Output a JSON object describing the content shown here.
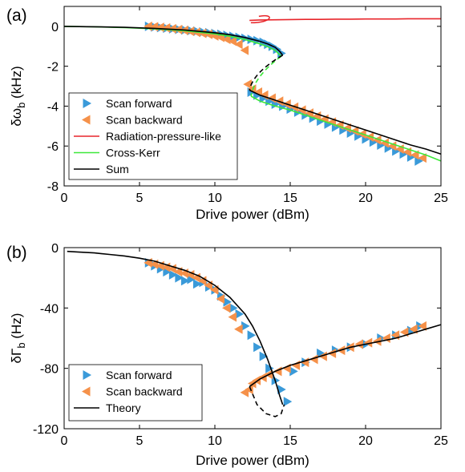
{
  "colors": {
    "forward": "#3a9ad9",
    "backward": "#f5914a",
    "radiation": "#e8262b",
    "crosskerr": "#3de83a",
    "sum": "#000000",
    "theory": "#000000"
  },
  "chart_data": [
    {
      "type": "scatter",
      "panel_label": "(a)",
      "xlabel": "Drive power (dBm)",
      "ylabel_main": "δω",
      "ylabel_sub": "b",
      "ylabel_unit": " (kHz)",
      "xlim": [
        0,
        25
      ],
      "ylim": [
        -8,
        1
      ],
      "xticks": [
        "0",
        "5",
        "10",
        "15",
        "20",
        "25"
      ],
      "yticks": [
        "0",
        "-2",
        "-4",
        "-6",
        "-8"
      ],
      "grid": false,
      "legend_position": "bottom-left",
      "series": [
        {
          "name": "Scan forward",
          "kind": "marker-right",
          "color": "#3a9ad9",
          "x": [
            5.6,
            6.0,
            6.4,
            6.8,
            7.2,
            7.6,
            8.0,
            8.4,
            8.8,
            9.2,
            9.6,
            10.0,
            10.4,
            10.8,
            11.2,
            11.6,
            12.0,
            12.4,
            12.8,
            13.2,
            13.5,
            13.8,
            14.1,
            14.4,
            12.4,
            12.8,
            13.2,
            13.6,
            14.0,
            14.5,
            15.0,
            15.5,
            16.0,
            16.5,
            17.0,
            17.5,
            18.0,
            18.5,
            19.0,
            19.5,
            20.0,
            20.5,
            21.0,
            21.5,
            22.0,
            22.5,
            23.0,
            23.5
          ],
          "y": [
            0.0,
            -0.03,
            -0.06,
            -0.09,
            -0.12,
            -0.15,
            -0.18,
            -0.21,
            -0.24,
            -0.28,
            -0.32,
            -0.36,
            -0.4,
            -0.45,
            -0.5,
            -0.55,
            -0.6,
            -0.65,
            -0.72,
            -0.8,
            -0.9,
            -1.0,
            -1.15,
            -1.35,
            -3.3,
            -3.45,
            -3.6,
            -3.75,
            -3.9,
            -4.0,
            -4.15,
            -4.3,
            -4.45,
            -4.6,
            -4.75,
            -4.9,
            -5.05,
            -5.2,
            -5.35,
            -5.5,
            -5.65,
            -5.8,
            -5.95,
            -6.1,
            -6.25,
            -6.4,
            -6.55,
            -6.75
          ]
        },
        {
          "name": "Scan backward",
          "kind": "marker-left",
          "color": "#f5914a",
          "x": [
            23.8,
            23.3,
            22.8,
            22.3,
            21.8,
            21.3,
            20.8,
            20.3,
            19.8,
            19.3,
            18.8,
            18.3,
            17.8,
            17.3,
            16.8,
            16.3,
            15.8,
            15.3,
            14.8,
            14.3,
            13.8,
            13.3,
            12.9,
            12.5,
            12.2,
            12.0,
            11.6,
            11.2,
            10.8,
            10.4,
            10.0,
            9.6,
            9.2,
            8.8,
            8.4,
            8.0,
            7.6,
            7.2,
            6.8,
            6.4,
            6.0,
            5.6
          ],
          "y": [
            -6.6,
            -6.45,
            -6.3,
            -6.15,
            -6.0,
            -5.85,
            -5.7,
            -5.55,
            -5.4,
            -5.25,
            -5.1,
            -4.95,
            -4.8,
            -4.65,
            -4.5,
            -4.35,
            -4.2,
            -4.05,
            -3.9,
            -3.75,
            -3.6,
            -3.45,
            -3.3,
            -3.15,
            -2.9,
            -1.2,
            -0.9,
            -0.75,
            -0.65,
            -0.55,
            -0.48,
            -0.4,
            -0.35,
            -0.3,
            -0.25,
            -0.2,
            -0.16,
            -0.12,
            -0.08,
            -0.05,
            -0.02,
            0.0
          ]
        },
        {
          "name": "Radiation-pressure-like",
          "kind": "line",
          "color": "#e8262b",
          "x": [
            12.3,
            13.0,
            14.0,
            15.0,
            16.0,
            17.0,
            18.0,
            19.0,
            20.0,
            21.0,
            22.0,
            23.0,
            24.0,
            25.0
          ],
          "y": [
            0.3,
            0.32,
            0.33,
            0.34,
            0.35,
            0.35,
            0.36,
            0.36,
            0.37,
            0.37,
            0.37,
            0.38,
            0.38,
            0.38
          ]
        },
        {
          "name": "Cross-Kerr",
          "kind": "line",
          "color": "#3de83a",
          "x": [
            0,
            2,
            4,
            6,
            8,
            10,
            11,
            12,
            13,
            13.5,
            14.0,
            14.4,
            12.4,
            13,
            14,
            15,
            16,
            17,
            18,
            19,
            20,
            21,
            22,
            23,
            24,
            25
          ],
          "y": [
            0.0,
            -0.02,
            -0.06,
            -0.12,
            -0.22,
            -0.38,
            -0.5,
            -0.66,
            -0.88,
            -1.02,
            -1.2,
            -1.5,
            -3.5,
            -3.75,
            -4.0,
            -4.2,
            -4.45,
            -4.7,
            -4.95,
            -5.2,
            -5.45,
            -5.7,
            -5.95,
            -6.2,
            -6.45,
            -6.75
          ]
        },
        {
          "name": "Sum",
          "kind": "line",
          "color": "#000000",
          "x": [
            0,
            2,
            4,
            6,
            8,
            10,
            11,
            12,
            13,
            13.5,
            14.0,
            14.3,
            14.5,
            12.3,
            13,
            14,
            15,
            16,
            17,
            18,
            19,
            20,
            21,
            22,
            23,
            24,
            25
          ],
          "y": [
            0.0,
            -0.02,
            -0.05,
            -0.1,
            -0.18,
            -0.32,
            -0.42,
            -0.56,
            -0.75,
            -0.88,
            -1.05,
            -1.25,
            -1.45,
            -3.2,
            -3.45,
            -3.7,
            -3.95,
            -4.2,
            -4.45,
            -4.7,
            -4.95,
            -5.2,
            -5.45,
            -5.7,
            -5.95,
            -6.15,
            -6.4
          ]
        }
      ]
    },
    {
      "type": "scatter",
      "panel_label": "(b)",
      "xlabel": "Drive power (dBm)",
      "ylabel_main": "δΓ",
      "ylabel_sub": "b",
      "ylabel_unit": " (Hz)",
      "xlim": [
        0,
        25
      ],
      "ylim": [
        -120,
        0
      ],
      "xticks": [
        "0",
        "5",
        "10",
        "15",
        "20",
        "25"
      ],
      "yticks": [
        "0",
        "-40",
        "-80",
        "-120"
      ],
      "grid": false,
      "legend_position": "bottom-left",
      "series": [
        {
          "name": "Scan forward",
          "kind": "marker-right",
          "color": "#3a9ad9",
          "x": [
            5.6,
            6.0,
            6.4,
            6.8,
            7.2,
            7.6,
            8.0,
            8.4,
            8.8,
            9.2,
            9.6,
            10.0,
            10.4,
            10.8,
            11.2,
            11.6,
            12.0,
            12.4,
            12.8,
            13.2,
            13.6,
            14.0,
            14.4,
            14.8,
            15.2,
            16.0,
            17.0,
            18.0,
            19.0,
            20.0,
            21.0,
            22.0,
            23.0,
            23.6
          ],
          "y": [
            -10,
            -12,
            -14,
            -16,
            -18,
            -20,
            -22,
            -21,
            -24,
            -23,
            -26,
            -28,
            -32,
            -36,
            -40,
            -44,
            -52,
            -58,
            -66,
            -72,
            -80,
            -88,
            -94,
            -102,
            -82,
            -76,
            -70,
            -68,
            -66,
            -64,
            -60,
            -58,
            -55,
            -52
          ]
        },
        {
          "name": "Scan backward",
          "kind": "marker-left",
          "color": "#f5914a",
          "x": [
            23.8,
            23.2,
            22.6,
            22.0,
            21.4,
            20.8,
            20.2,
            19.6,
            19.0,
            18.4,
            17.8,
            17.2,
            16.6,
            16.0,
            15.4,
            14.8,
            14.2,
            13.6,
            13.2,
            12.8,
            12.5,
            12.3,
            12.0,
            11.6,
            11.2,
            10.8,
            10.4,
            10.0,
            9.6,
            9.2,
            8.8,
            8.4,
            8.0,
            7.6,
            7.2,
            6.8,
            6.4,
            6.0,
            5.6
          ],
          "y": [
            -52,
            -54,
            -56,
            -58,
            -60,
            -62,
            -63,
            -64,
            -66,
            -68,
            -70,
            -72,
            -74,
            -76,
            -78,
            -80,
            -82,
            -84,
            -86,
            -88,
            -90,
            -94,
            -96,
            -54,
            -46,
            -40,
            -34,
            -28,
            -25,
            -22,
            -20,
            -18,
            -17,
            -16,
            -14,
            -13,
            -12,
            -11,
            -10
          ]
        },
        {
          "name": "Theory",
          "kind": "line",
          "color": "#000000",
          "x": [
            0.2,
            1,
            2,
            3,
            4,
            5,
            6,
            7,
            8,
            9,
            10,
            11,
            12,
            12.5,
            13,
            13.5,
            14.0,
            14.3,
            14.5,
            12.3,
            13,
            14,
            15,
            16,
            17,
            18,
            19,
            20,
            21,
            22,
            23,
            24,
            25
          ],
          "y": [
            -2.5,
            -3,
            -3.5,
            -4.5,
            -5.5,
            -7,
            -9,
            -12,
            -15,
            -19,
            -25,
            -33,
            -44,
            -52,
            -62,
            -74,
            -88,
            -98,
            -104,
            -92,
            -87,
            -82,
            -78,
            -75,
            -72,
            -69,
            -66,
            -64,
            -62,
            -60,
            -57,
            -54,
            -51
          ]
        },
        {
          "name": "",
          "kind": "dashed",
          "color": "#000000",
          "x": [
            12.3,
            12.8,
            13.4,
            14.0,
            14.4,
            14.6
          ],
          "y": [
            -92,
            -104,
            -110,
            -112,
            -110,
            -104
          ]
        }
      ]
    }
  ]
}
